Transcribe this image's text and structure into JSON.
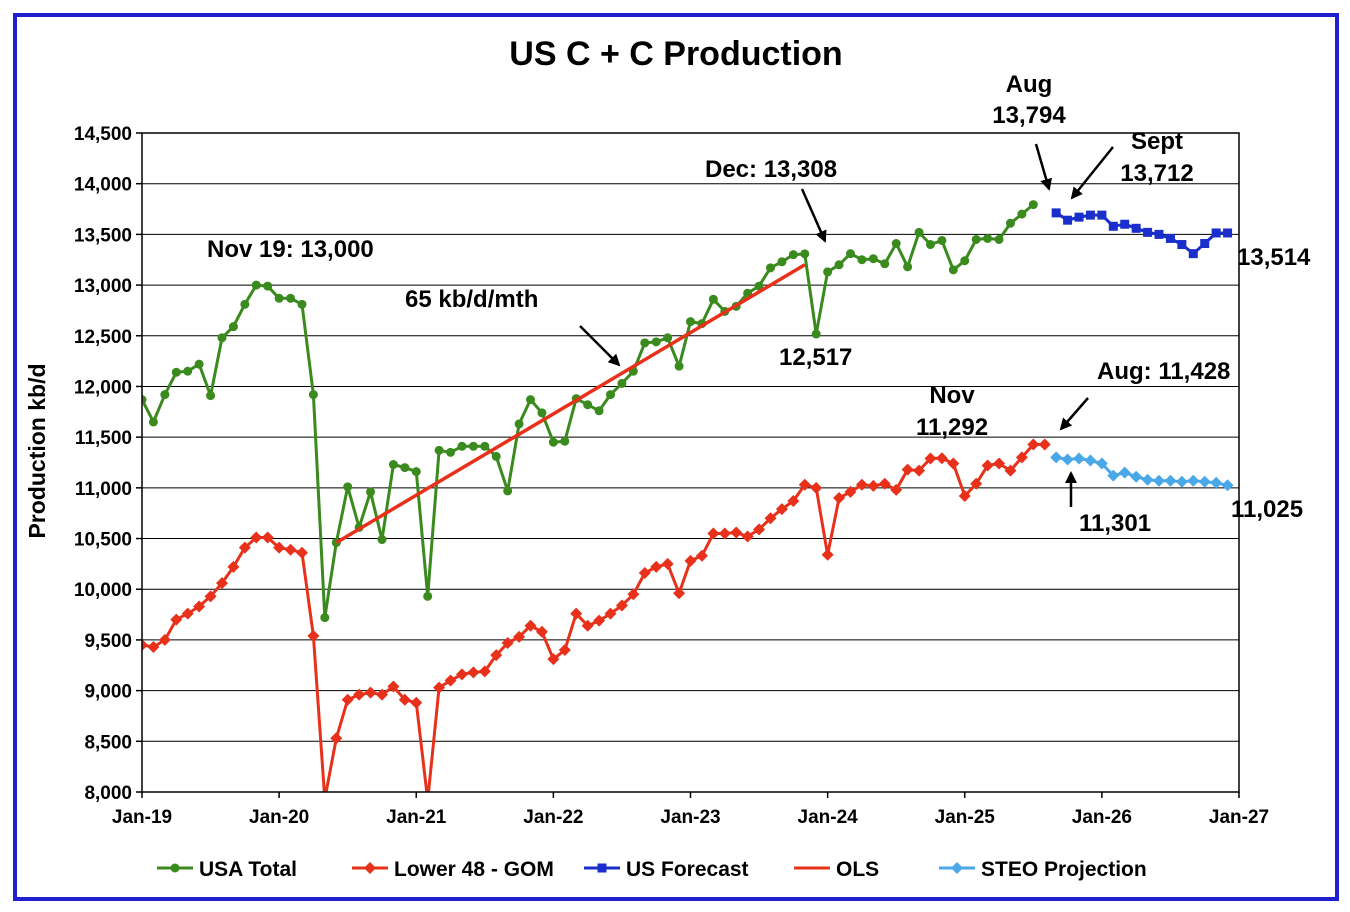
{
  "chart_data": {
    "type": "line",
    "title": "US C + C Production",
    "xlabel": "",
    "ylabel": "Production kb/d",
    "ylim": [
      8000,
      14500
    ],
    "y_ticks": [
      "8,000",
      "8,500",
      "9,000",
      "9,500",
      "10,000",
      "10,500",
      "11,000",
      "11,500",
      "12,000",
      "12,500",
      "13,000",
      "13,500",
      "14,000",
      "14,500"
    ],
    "x_ticks": [
      "Jan-19",
      "Jan-20",
      "Jan-21",
      "Jan-22",
      "Jan-23",
      "Jan-24",
      "Jan-25",
      "Jan-26",
      "Jan-27"
    ],
    "x_axis_note": "x = months since Jan-2019 (0 = Jan-19, 96 = Jan-27)",
    "xlim": [
      0,
      96
    ],
    "gridlines": "horizontal",
    "legend_position": "bottom",
    "series": [
      {
        "name": "USA Total",
        "color": "#3a8a1e",
        "marker": "circle",
        "x_start": 0,
        "values": [
          11870,
          11650,
          11920,
          12140,
          12150,
          12220,
          11910,
          12480,
          12590,
          12810,
          13000,
          12990,
          12870,
          12870,
          12810,
          11920,
          9720,
          10460,
          11010,
          10610,
          10960,
          10490,
          11230,
          11200,
          11160,
          9930,
          11370,
          11350,
          11410,
          11410,
          11410,
          11310,
          10970,
          11630,
          11870,
          11740,
          11450,
          11460,
          11880,
          11820,
          11760,
          11920,
          12030,
          12150,
          12430,
          12440,
          12480,
          12200,
          12640,
          12620,
          12860,
          12740,
          12790,
          12920,
          12990,
          13170,
          13230,
          13300,
          13308,
          12517,
          13130,
          13200,
          13310,
          13250,
          13260,
          13210,
          13410,
          13180,
          13520,
          13400,
          13440,
          13150,
          13240,
          13450,
          13460,
          13450,
          13610,
          13700,
          13794
        ]
      },
      {
        "name": "Lower 48 - GOM",
        "color": "#e8311a",
        "marker": "diamond",
        "x_start": 0,
        "values": [
          9450,
          9430,
          9500,
          9700,
          9760,
          9830,
          9930,
          10060,
          10220,
          10410,
          10510,
          10510,
          10410,
          10390,
          10360,
          9540,
          7930,
          8530,
          8910,
          8960,
          8980,
          8960,
          9040,
          8910,
          8880,
          7920,
          9030,
          9100,
          9160,
          9180,
          9190,
          9350,
          9470,
          9530,
          9640,
          9580,
          9310,
          9400,
          9760,
          9640,
          9690,
          9760,
          9840,
          9950,
          10160,
          10220,
          10250,
          9960,
          10280,
          10330,
          10550,
          10550,
          10560,
          10520,
          10590,
          10700,
          10790,
          10870,
          11030,
          11000,
          10340,
          10900,
          10960,
          11030,
          11020,
          11040,
          10980,
          11180,
          11170,
          11290,
          11292,
          11240,
          10920,
          11040,
          11220,
          11240,
          11170,
          11300,
          11428,
          11428
        ]
      },
      {
        "name": "US Forecast",
        "color": "#1a2ecc",
        "marker": "square",
        "x_start": 80,
        "values": [
          13712,
          13640,
          13670,
          13690,
          13690,
          13580,
          13600,
          13560,
          13520,
          13500,
          13460,
          13400,
          13310,
          13410,
          13514,
          13514
        ]
      },
      {
        "name": "OLS",
        "color": "#e8311a",
        "marker": "none",
        "x": [
          17,
          58
        ],
        "values": [
          10460,
          13200
        ]
      },
      {
        "name": "STEO Projection",
        "color": "#4aa8e8",
        "marker": "diamond",
        "x_start": 80,
        "values": [
          11301,
          11280,
          11290,
          11270,
          11240,
          11120,
          11150,
          11110,
          11080,
          11070,
          11070,
          11060,
          11070,
          11060,
          11050,
          11025
        ]
      }
    ],
    "annotations": [
      {
        "text": "Nov 19: 13,000"
      },
      {
        "text": "65 kb/d/mth"
      },
      {
        "text": "Dec: 13,308"
      },
      {
        "text": "12,517"
      },
      {
        "text": "Aug"
      },
      {
        "text": "13,794"
      },
      {
        "text": "Sept"
      },
      {
        "text": "13,712"
      },
      {
        "text": "13,514"
      },
      {
        "text": "Nov"
      },
      {
        "text": "11,292"
      },
      {
        "text": "Aug: 11,428"
      },
      {
        "text": "11,301"
      },
      {
        "text": "11,025"
      }
    ]
  }
}
